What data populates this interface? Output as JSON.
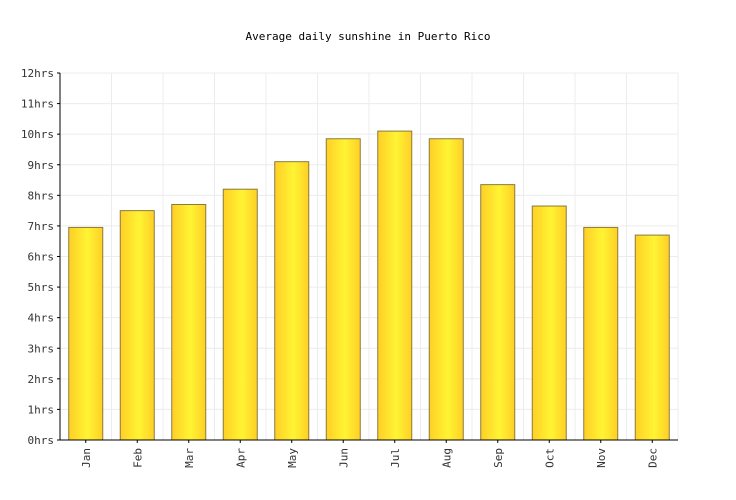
{
  "chart_data": {
    "type": "bar",
    "title": "Average daily sunshine in Puerto Rico",
    "categories": [
      "Jan",
      "Feb",
      "Mar",
      "Apr",
      "May",
      "Jun",
      "Jul",
      "Aug",
      "Sep",
      "Oct",
      "Nov",
      "Dec"
    ],
    "values": [
      6.95,
      7.5,
      7.7,
      8.2,
      9.1,
      9.85,
      10.1,
      9.85,
      8.35,
      7.65,
      6.95,
      6.7
    ],
    "ylim": [
      0,
      12
    ],
    "yticks": [
      "0hrs",
      "1hrs",
      "2hrs",
      "3hrs",
      "4hrs",
      "5hrs",
      "6hrs",
      "7hrs",
      "8hrs",
      "9hrs",
      "10hrs",
      "11hrs",
      "12hrs"
    ],
    "xlabel": "",
    "ylabel": "",
    "grid": true,
    "legend": "none",
    "colors": {
      "bar_light": "#FFF433",
      "bar_dark": "#FFCF26",
      "bar_stroke": "#8a7a3a",
      "grid": "#ececec",
      "axis": "#000000"
    }
  }
}
